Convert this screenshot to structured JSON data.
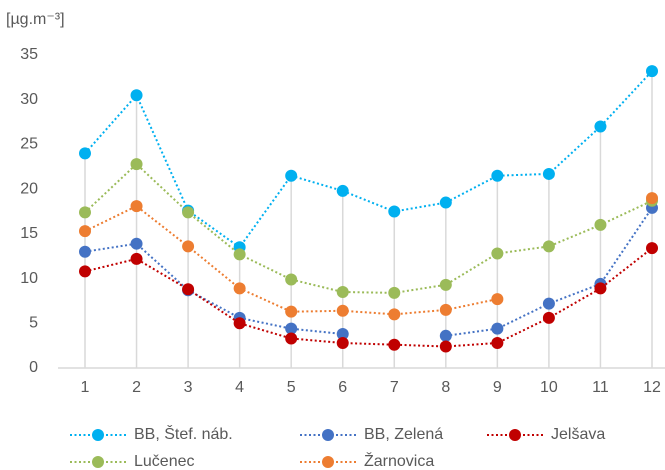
{
  "chart_data": {
    "type": "line",
    "ylabel": "[µg.m⁻³]",
    "categories": [
      "1",
      "2",
      "3",
      "4",
      "5",
      "6",
      "7",
      "8",
      "9",
      "10",
      "11",
      "12"
    ],
    "series": [
      {
        "name": "BB, Štef. náb.",
        "color": "#00b0f0",
        "values": [
          24,
          30.5,
          17.6,
          13.5,
          21.5,
          19.8,
          17.5,
          18.5,
          21.5,
          21.7,
          27,
          33.2
        ]
      },
      {
        "name": "BB, Zelená",
        "color": "#4472c4",
        "values": [
          13,
          13.9,
          8.7,
          5.6,
          4.4,
          3.8,
          null,
          3.6,
          4.4,
          7.2,
          9.4,
          17.9
        ]
      },
      {
        "name": "Jelšava",
        "color": "#c00000",
        "values": [
          10.8,
          12.2,
          8.8,
          5.0,
          3.3,
          2.8,
          2.6,
          2.4,
          2.8,
          5.6,
          8.9,
          13.4
        ]
      },
      {
        "name": "Lučenec",
        "color": "#9bbb59",
        "values": [
          17.4,
          22.8,
          17.4,
          12.7,
          9.9,
          8.5,
          8.4,
          9.3,
          12.8,
          13.6,
          16,
          18.7
        ]
      },
      {
        "name": "Žarnovica",
        "color": "#ed7d31",
        "values": [
          15.3,
          18.1,
          13.6,
          8.9,
          6.3,
          6.4,
          6.0,
          6.5,
          7.7,
          null,
          null,
          19
        ]
      }
    ],
    "ylim": [
      0,
      35
    ],
    "yticks": [
      0,
      5,
      10,
      15,
      20,
      25,
      30,
      35
    ],
    "grid": false,
    "legend": "bottom"
  }
}
